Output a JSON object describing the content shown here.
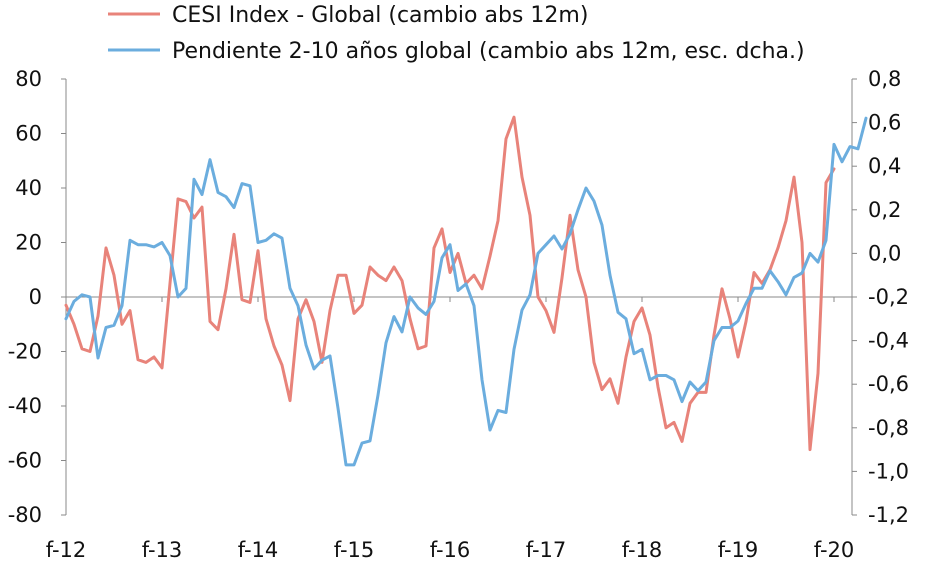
{
  "chart_data": {
    "type": "line",
    "title": "",
    "legend_position": "top",
    "grid": false,
    "x_ticks": [
      "f-12",
      "f-13",
      "f-14",
      "f-15",
      "f-16",
      "f-17",
      "f-18",
      "f-19",
      "f-20"
    ],
    "y_left": {
      "range": [
        -80,
        80
      ],
      "ticks": [
        "80",
        "60",
        "40",
        "20",
        "0",
        "-20",
        "-40",
        "-60",
        "-80"
      ]
    },
    "y_right": {
      "range": [
        -1.2,
        0.8
      ],
      "ticks": [
        "0,8",
        "0,6",
        "0,4",
        "0,2",
        "0,0",
        "-0,2",
        "-0,4",
        "-0,6",
        "-0,8",
        "-1,0",
        "-1,2"
      ]
    },
    "series": [
      {
        "name": "CESI Index - Global  (cambio  abs 12m)",
        "axis": "left",
        "color": "#e8837a",
        "values": [
          -3,
          -10,
          -19,
          -20,
          -7,
          18,
          8,
          -10,
          -5,
          -23,
          -24,
          -22,
          -26,
          5,
          36,
          35,
          29,
          33,
          -9,
          -12,
          3,
          23,
          -1,
          -2,
          17,
          -8,
          -18,
          -25,
          -38,
          -8,
          -1,
          -9,
          -24,
          -5,
          8,
          8,
          -6,
          -3,
          11,
          8,
          6,
          11,
          6,
          -8,
          -19,
          -18,
          18,
          25,
          9,
          16,
          5,
          8,
          3,
          15,
          28,
          58,
          66,
          44,
          30,
          0,
          -5,
          -13,
          7,
          30,
          10,
          0,
          -24,
          -34,
          -30,
          -39,
          -22,
          -9,
          -4,
          -14,
          -33,
          -48,
          -46,
          -53,
          -39,
          -35,
          -35,
          -14,
          3,
          -8,
          -22,
          -9,
          9,
          5,
          10,
          18,
          28,
          44,
          20,
          -56,
          -28,
          42,
          47
        ]
      },
      {
        "name": "Pendiente 2-10 años global (cambio abs 12m, esc. dcha.)",
        "axis": "right",
        "color": "#6badde",
        "values": [
          -0.3,
          -0.22,
          -0.19,
          -0.2,
          -0.48,
          -0.34,
          -0.33,
          -0.24,
          0.06,
          0.04,
          0.04,
          0.03,
          0.05,
          -0.01,
          -0.2,
          -0.16,
          0.34,
          0.27,
          0.43,
          0.28,
          0.26,
          0.21,
          0.32,
          0.31,
          0.05,
          0.06,
          0.09,
          0.07,
          -0.16,
          -0.24,
          -0.42,
          -0.53,
          -0.49,
          -0.47,
          -0.71,
          -0.97,
          -0.97,
          -0.87,
          -0.86,
          -0.65,
          -0.41,
          -0.29,
          -0.36,
          -0.2,
          -0.25,
          -0.28,
          -0.22,
          -0.02,
          0.04,
          -0.17,
          -0.14,
          -0.24,
          -0.58,
          -0.81,
          -0.72,
          -0.73,
          -0.44,
          -0.26,
          -0.19,
          0.0,
          0.04,
          0.08,
          0.02,
          0.09,
          0.2,
          0.3,
          0.24,
          0.13,
          -0.1,
          -0.27,
          -0.3,
          -0.46,
          -0.44,
          -0.58,
          -0.56,
          -0.56,
          -0.58,
          -0.68,
          -0.59,
          -0.63,
          -0.59,
          -0.4,
          -0.34,
          -0.34,
          -0.31,
          -0.23,
          -0.16,
          -0.16,
          -0.08,
          -0.13,
          -0.19,
          -0.11,
          -0.09,
          0.0,
          -0.04,
          0.06,
          0.5,
          0.42,
          0.49,
          0.48,
          0.62
        ]
      }
    ]
  }
}
